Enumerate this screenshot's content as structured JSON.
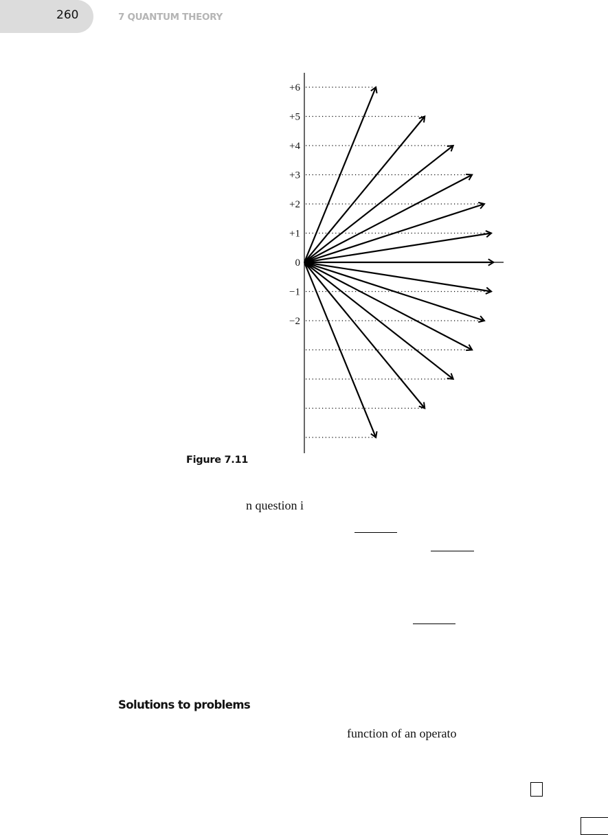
{
  "header": {
    "page_number": "260",
    "chapter": "7 QUANTUM THEORY",
    "tab_color": "#dcdcdc"
  },
  "figure": {
    "caption": "Figure 7.11",
    "m_values": [
      6,
      5,
      4,
      3,
      2,
      1,
      0,
      -1,
      -2,
      -3,
      -4,
      -5,
      -6
    ],
    "tick_labels": [
      {
        "m": 6,
        "label": "+6"
      },
      {
        "m": 5,
        "label": "+5"
      },
      {
        "m": 4,
        "label": "+4"
      },
      {
        "m": 3,
        "label": "+3"
      },
      {
        "m": 2,
        "label": "+2"
      },
      {
        "m": 1,
        "label": "+1"
      },
      {
        "m": 0,
        "label": "0"
      },
      {
        "m": -1,
        "label": "−1"
      },
      {
        "m": -2,
        "label": "−2"
      }
    ],
    "l": 6
  },
  "body": {
    "fragment1": "n question i",
    "section_heading": "Solutions to problems",
    "fragment2": "function of an operato"
  }
}
